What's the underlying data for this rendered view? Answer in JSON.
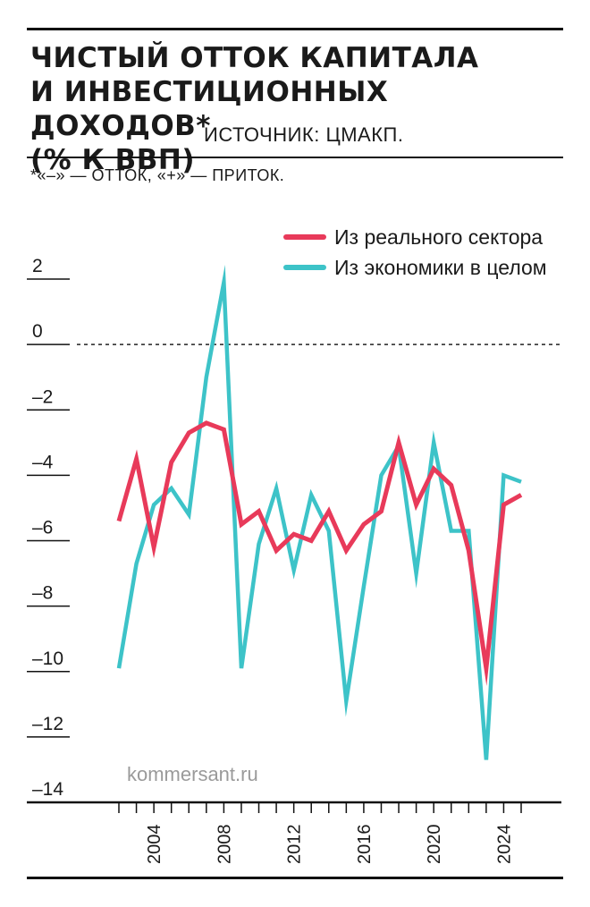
{
  "title_lines": [
    "ЧИСТЫЙ ОТТОК КАПИТАЛА",
    "И ИНВЕСТИЦИОННЫХ ДОХОДОВ*",
    "(% К ВВП)"
  ],
  "source": "ИСТОЧНИК: ЦМАКП.",
  "footnote": "*«–» — ОТТОК, «+» — ПРИТОК.",
  "credit": "kommersant.ru",
  "colors": {
    "real_sector": "#e83a5a",
    "economy": "#3dc3c8",
    "rules": "#111111"
  },
  "chart_data": {
    "type": "line",
    "ylim": [
      -14,
      2
    ],
    "yticks": [
      2,
      0,
      -2,
      -4,
      -6,
      -8,
      -10,
      -12,
      -14
    ],
    "ytick_labels": [
      "2",
      "0",
      "–2",
      "–4",
      "–6",
      "–8",
      "–10",
      "–12",
      "–14"
    ],
    "xticks": [
      2004,
      2008,
      2012,
      2016,
      2020,
      2024
    ],
    "xtick_labels": [
      "2004",
      "2008",
      "2012",
      "2016",
      "2020",
      "2024"
    ],
    "x_minor_ticks": [
      2002,
      2003,
      2004,
      2005,
      2006,
      2007,
      2008,
      2009,
      2010,
      2011,
      2012,
      2013,
      2014,
      2015,
      2016,
      2017,
      2018,
      2019,
      2020,
      2021,
      2022,
      2023,
      2024,
      2025
    ],
    "zero_line": "dashed",
    "legend_position": "top-right",
    "series": [
      {
        "name": "Из реального сектора",
        "color": "#e83a5a",
        "x": [
          2002,
          2003,
          2004,
          2005,
          2006,
          2007,
          2008,
          2009,
          2010,
          2011,
          2012,
          2013,
          2014,
          2015,
          2016,
          2017,
          2018,
          2019,
          2020,
          2021,
          2022,
          2023,
          2024,
          2025
        ],
        "values": [
          -5.4,
          -3.5,
          -6.2,
          -3.6,
          -2.7,
          -2.4,
          -2.6,
          -5.5,
          -5.1,
          -6.3,
          -5.8,
          -6.0,
          -5.1,
          -6.3,
          -5.5,
          -5.1,
          -3.0,
          -4.9,
          -3.8,
          -4.3,
          -6.3,
          -9.9,
          -4.9,
          -4.6
        ]
      },
      {
        "name": "Из экономики в целом",
        "color": "#3dc3c8",
        "x": [
          2002,
          2003,
          2004,
          2005,
          2006,
          2007,
          2008,
          2009,
          2010,
          2011,
          2012,
          2013,
          2014,
          2015,
          2016,
          2017,
          2018,
          2019,
          2020,
          2021,
          2022,
          2023,
          2024,
          2025
        ],
        "values": [
          -9.9,
          -6.7,
          -4.9,
          -4.4,
          -5.2,
          -1.0,
          1.9,
          -9.9,
          -6.1,
          -4.4,
          -6.9,
          -4.6,
          -5.7,
          -10.9,
          -7.4,
          -4.0,
          -3.1,
          -7.0,
          -3.0,
          -5.7,
          -5.7,
          -12.7,
          -4.0,
          -4.2
        ]
      }
    ]
  }
}
